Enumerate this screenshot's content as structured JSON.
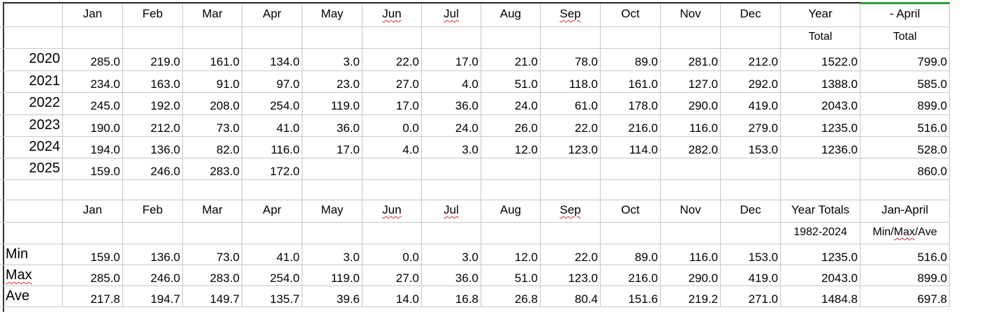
{
  "months": [
    "Jan",
    "Feb",
    "Mar",
    "Apr",
    "May",
    "Jun",
    "Jul",
    "Aug",
    "Sep",
    "Oct",
    "Nov",
    "Dec"
  ],
  "spell_flag_months": [
    "Jun",
    "Jul",
    "Sep"
  ],
  "top_table": {
    "year_total_header": [
      "Year",
      "Total"
    ],
    "april_total_header": [
      "- April",
      "Total"
    ],
    "rows": [
      {
        "year": "2020",
        "values": [
          "285.0",
          "219.0",
          "161.0",
          "134.0",
          "3.0",
          "22.0",
          "17.0",
          "21.0",
          "78.0",
          "89.0",
          "281.0",
          "212.0"
        ],
        "year_total": "1522.0",
        "april_total": "799.0"
      },
      {
        "year": "2021",
        "values": [
          "234.0",
          "163.0",
          "91.0",
          "97.0",
          "23.0",
          "27.0",
          "4.0",
          "51.0",
          "118.0",
          "161.0",
          "127.0",
          "292.0"
        ],
        "year_total": "1388.0",
        "april_total": "585.0"
      },
      {
        "year": "2022",
        "values": [
          "245.0",
          "192.0",
          "208.0",
          "254.0",
          "119.0",
          "17.0",
          "36.0",
          "24.0",
          "61.0",
          "178.0",
          "290.0",
          "419.0"
        ],
        "year_total": "2043.0",
        "april_total": "899.0"
      },
      {
        "year": "2023",
        "values": [
          "190.0",
          "212.0",
          "73.0",
          "41.0",
          "36.0",
          "0.0",
          "24.0",
          "26.0",
          "22.0",
          "216.0",
          "116.0",
          "279.0"
        ],
        "year_total": "1235.0",
        "april_total": "516.0"
      },
      {
        "year": "2024",
        "values": [
          "194.0",
          "136.0",
          "82.0",
          "116.0",
          "17.0",
          "4.0",
          "3.0",
          "12.0",
          "123.0",
          "114.0",
          "282.0",
          "153.0"
        ],
        "year_total": "1236.0",
        "april_total": "528.0"
      },
      {
        "year": "2025",
        "values": [
          "159.0",
          "246.0",
          "283.0",
          "172.0",
          "",
          "",
          "",
          "",
          "",
          "",
          "",
          ""
        ],
        "year_total": "",
        "april_total": "860.0"
      }
    ]
  },
  "bottom_table": {
    "year_total_header": [
      "Year Totals",
      "1982-2024"
    ],
    "april_total_header": [
      "Jan-April",
      "Min/Max/Ave"
    ],
    "rows": [
      {
        "label": "Min",
        "values": [
          "159.0",
          "136.0",
          "73.0",
          "41.0",
          "3.0",
          "0.0",
          "3.0",
          "12.0",
          "22.0",
          "89.0",
          "116.0",
          "153.0"
        ],
        "year_total": "1235.0",
        "april_total": "516.0"
      },
      {
        "label": "Max",
        "values": [
          "285.0",
          "246.0",
          "283.0",
          "254.0",
          "119.0",
          "27.0",
          "36.0",
          "51.0",
          "123.0",
          "216.0",
          "290.0",
          "419.0"
        ],
        "year_total": "2043.0",
        "april_total": "899.0"
      },
      {
        "label": "Ave",
        "values": [
          "217.8",
          "194.7",
          "149.7",
          "135.7",
          "39.6",
          "14.0",
          "16.8",
          "26.8",
          "80.4",
          "151.6",
          "219.2",
          "271.0"
        ],
        "year_total": "1484.8",
        "april_total": "697.8"
      }
    ]
  },
  "colors": {
    "grid": "#c8c8c8",
    "spell_underline": "#d03030",
    "active_header": "#2e9e2e"
  }
}
